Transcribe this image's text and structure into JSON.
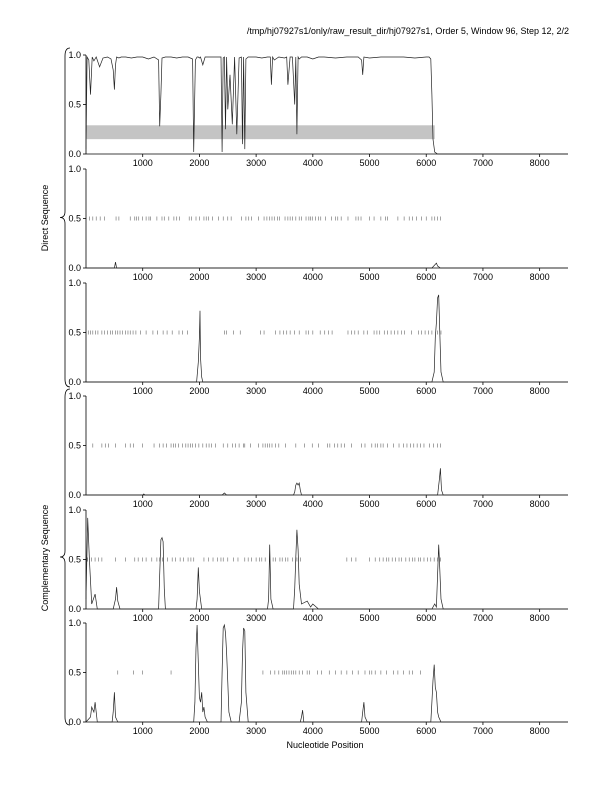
{
  "header": {
    "title": "/tmp/hj07927s1/only/raw_result_dir/hj07927s1, Order 5, Window 96, Step 12, 2/2"
  },
  "groups": [
    {
      "label": "Direct Sequence"
    },
    {
      "label": "Complementary Sequence"
    }
  ],
  "xlabel": "Nucleotide Position",
  "chart_data": [
    {
      "type": "line",
      "strand": "direct",
      "frame": 1,
      "xlim": [
        0,
        8500
      ],
      "ylim": [
        0,
        1
      ],
      "xticks": [
        1000,
        2000,
        3000,
        4000,
        5000,
        6000,
        7000,
        8000
      ],
      "yticks": [
        "0.0",
        "0.5",
        "1.0"
      ],
      "coding_region": [
        0,
        6150
      ],
      "marks_x": [],
      "series": [
        {
          "x": [
            0,
            20,
            50,
            80,
            110,
            140,
            180,
            240,
            300,
            380,
            440,
            480,
            500,
            520,
            540,
            580,
            620,
            700,
            800,
            900,
            1000,
            1100,
            1200,
            1280,
            1300,
            1320,
            1340,
            1400,
            1500,
            1600,
            1700,
            1800,
            1880,
            1900,
            1930,
            1960,
            1980,
            2000,
            2020,
            2060,
            2100,
            2200,
            2300,
            2380,
            2400,
            2420,
            2440,
            2460,
            2480,
            2500,
            2540,
            2580,
            2620,
            2660,
            2700,
            2740,
            2760,
            2780,
            2800,
            2820,
            2860,
            2900,
            3000,
            3100,
            3200,
            3250,
            3270,
            3290,
            3320,
            3400,
            3500,
            3540,
            3560,
            3600,
            3640,
            3680,
            3700,
            3720,
            3740,
            3760,
            3800,
            3900,
            4000,
            4100,
            4200,
            4400,
            4600,
            4800,
            4860,
            4880,
            4900,
            5000,
            5200,
            5400,
            5600,
            5800,
            6000,
            6050,
            6080,
            6100,
            6120,
            6150,
            6200,
            6400,
            8500
          ],
          "y": [
            0.05,
            0.98,
            0.95,
            0.6,
            0.98,
            0.94,
            0.98,
            0.88,
            0.97,
            0.98,
            0.96,
            0.85,
            0.65,
            0.9,
            0.98,
            0.97,
            0.98,
            0.98,
            0.97,
            0.98,
            0.98,
            0.96,
            0.98,
            0.95,
            0.28,
            0.6,
            0.97,
            0.98,
            0.98,
            0.97,
            0.98,
            0.98,
            0.96,
            0.02,
            0.95,
            0.98,
            0.98,
            0.97,
            0.98,
            0.9,
            0.98,
            0.98,
            0.98,
            0.98,
            0.02,
            0.97,
            0.98,
            0.25,
            0.98,
            0.45,
            0.8,
            0.3,
            0.98,
            0.2,
            0.97,
            0.98,
            0.1,
            0.98,
            0.05,
            0.96,
            0.98,
            0.98,
            0.98,
            0.97,
            0.98,
            0.98,
            0.7,
            0.98,
            0.95,
            0.98,
            0.97,
            0.98,
            0.7,
            0.98,
            0.98,
            0.5,
            0.98,
            0.2,
            0.98,
            0.96,
            0.98,
            0.98,
            0.96,
            0.98,
            0.98,
            0.97,
            0.98,
            0.98,
            0.95,
            0.8,
            0.98,
            0.97,
            0.98,
            0.98,
            0.98,
            0.97,
            0.98,
            0.98,
            0.96,
            0.6,
            0.15,
            0.02,
            0.0,
            0.0,
            0.0
          ]
        }
      ]
    },
    {
      "type": "line",
      "strand": "direct",
      "frame": 2,
      "xlim": [
        0,
        8500
      ],
      "ylim": [
        0,
        1
      ],
      "xticks": [
        1000,
        2000,
        3000,
        4000,
        5000,
        6000,
        7000,
        8000
      ],
      "yticks": [
        "0.0",
        "0.5",
        "1.0"
      ],
      "marks_x": [
        60,
        120,
        180,
        250,
        330,
        530,
        580,
        780,
        860,
        890,
        930,
        1000,
        1060,
        1110,
        1140,
        1250,
        1340,
        1380,
        1460,
        1550,
        1600,
        1650,
        1820,
        1860,
        1940,
        2000,
        2080,
        2120,
        2160,
        2230,
        2340,
        2420,
        2500,
        2560,
        2740,
        2820,
        2870,
        2920,
        3040,
        3140,
        3190,
        3240,
        3280,
        3320,
        3380,
        3410,
        3510,
        3560,
        3600,
        3640,
        3700,
        3760,
        3800,
        3880,
        3930,
        3960,
        3990,
        4050,
        4100,
        4140,
        4220,
        4330,
        4400,
        4440,
        4500,
        4620,
        4760,
        4800,
        4850,
        5000,
        5080,
        5200,
        5280,
        5320,
        5500,
        5610,
        5700,
        5760,
        5830,
        5920,
        6000,
        6100,
        6150,
        6200,
        6250
      ],
      "series": [
        {
          "x": [
            0,
            500,
            520,
            540,
            560,
            6100,
            6150,
            6180,
            6200,
            6250,
            8500
          ],
          "y": [
            0,
            0,
            0.06,
            0.0,
            0,
            0,
            0.03,
            0.05,
            0.02,
            0,
            0
          ]
        }
      ]
    },
    {
      "type": "line",
      "strand": "direct",
      "frame": 3,
      "xlim": [
        0,
        8500
      ],
      "ylim": [
        0,
        1
      ],
      "xticks": [
        1000,
        2000,
        3000,
        4000,
        5000,
        6000,
        7000,
        8000
      ],
      "yticks": [
        "0.0",
        "0.5",
        "1.0"
      ],
      "marks_x": [
        40,
        80,
        120,
        170,
        210,
        280,
        330,
        380,
        430,
        470,
        520,
        560,
        600,
        640,
        700,
        740,
        780,
        830,
        880,
        960,
        1060,
        1180,
        1260,
        1360,
        1430,
        1520,
        1640,
        1700,
        1790,
        2440,
        2480,
        2600,
        2720,
        3080,
        3140,
        3340,
        3420,
        3480,
        3540,
        3600,
        3680,
        3760,
        3880,
        3920,
        4000,
        4130,
        4210,
        4280,
        4340,
        4620,
        4680,
        4740,
        4800,
        4900,
        4960,
        5080,
        5130,
        5180,
        5260,
        5320,
        5380,
        5440,
        5500,
        5560,
        5620,
        5740,
        5860,
        5920,
        5980,
        6040,
        6100,
        6200,
        6260
      ],
      "series": [
        {
          "x": [
            0,
            1900,
            1950,
            1980,
            2000,
            2010,
            2020,
            2040,
            2060,
            2100,
            6100,
            6140,
            6160,
            6180,
            6200,
            6220,
            6240,
            6260,
            6300,
            8500
          ],
          "y": [
            0,
            0,
            0,
            0.2,
            0.45,
            0.72,
            0.25,
            0.05,
            0,
            0,
            0,
            0.1,
            0.45,
            0.6,
            0.85,
            0.88,
            0.5,
            0.1,
            0,
            0
          ]
        }
      ]
    },
    {
      "type": "line",
      "strand": "complementary",
      "frame": 1,
      "xlim": [
        0,
        8500
      ],
      "ylim": [
        0,
        1
      ],
      "xticks": [
        1000,
        2000,
        3000,
        4000,
        5000,
        6000,
        7000,
        8000
      ],
      "yticks": [
        "0.0",
        "0.5",
        "1.0"
      ],
      "marks_x": [
        120,
        280,
        340,
        400,
        520,
        700,
        780,
        840,
        1000,
        1200,
        1300,
        1360,
        1420,
        1500,
        1540,
        1580,
        1630,
        1700,
        1760,
        1800,
        1840,
        1880,
        1930,
        1990,
        2060,
        2120,
        2170,
        2210,
        2280,
        2420,
        2500,
        2580,
        2640,
        2700,
        2780,
        2800,
        2900,
        3040,
        3120,
        3160,
        3200,
        3240,
        3280,
        3340,
        3400,
        3520,
        3700,
        3850,
        3990,
        4100,
        4260,
        4300,
        4380,
        4440,
        4500,
        4560,
        4680,
        4860,
        4920,
        5040,
        5100,
        5140,
        5200,
        5240,
        5320,
        5420,
        5520,
        5600,
        5660,
        5720,
        5780,
        5840,
        5900,
        5960,
        6060,
        6130,
        6200,
        6250
      ],
      "series": [
        {
          "x": [
            0,
            1000,
            1020,
            1040,
            2400,
            2440,
            2480,
            3660,
            3680,
            3700,
            3720,
            3740,
            3760,
            3780,
            3800,
            6200,
            6230,
            6250,
            6270,
            6300,
            8500
          ],
          "y": [
            0,
            0,
            0.01,
            0,
            0,
            0.02,
            0,
            0,
            0.03,
            0.1,
            0.12,
            0.1,
            0.12,
            0.05,
            0,
            0,
            0.15,
            0.27,
            0.05,
            0,
            0
          ]
        }
      ]
    },
    {
      "type": "line",
      "strand": "complementary",
      "frame": 2,
      "xlim": [
        0,
        8500
      ],
      "ylim": [
        0,
        1
      ],
      "xticks": [
        1000,
        2000,
        3000,
        4000,
        5000,
        6000,
        7000,
        8000
      ],
      "yticks": [
        "0.0",
        "0.5",
        "1.0"
      ],
      "marks_x": [
        30,
        100,
        160,
        220,
        280,
        520,
        700,
        860,
        920,
        1000,
        1060,
        1160,
        1250,
        1300,
        1350,
        1440,
        1520,
        1580,
        1660,
        1720,
        1800,
        1850,
        1900,
        2080,
        2160,
        2240,
        2320,
        2380,
        2420,
        2500,
        2600,
        2680,
        2800,
        2860,
        2920,
        3000,
        3060,
        3100,
        3160,
        3240,
        3300,
        3340,
        3420,
        3460,
        3520,
        3560,
        3640,
        3720,
        3780,
        4600,
        4680,
        4760,
        5000,
        5100,
        5180,
        5240,
        5300,
        5340,
        5400,
        5460,
        5520,
        5560,
        5640,
        5700,
        5760,
        5800,
        5860,
        5900,
        5960,
        6020,
        6080,
        6140,
        6200,
        6250
      ],
      "series": [
        {
          "x": [
            0,
            30,
            60,
            100,
            160,
            200,
            480,
            520,
            540,
            560,
            600,
            1280,
            1300,
            1320,
            1340,
            1360,
            1380,
            1400,
            1940,
            1960,
            1980,
            2000,
            2040,
            3200,
            3220,
            3240,
            3260,
            3300,
            3660,
            3680,
            3700,
            3720,
            3740,
            3760,
            3800,
            3900,
            3960,
            4000,
            4100,
            6100,
            6150,
            6180,
            6200,
            6220,
            6240,
            6260,
            6300,
            8500
          ],
          "y": [
            0.1,
            0.92,
            0.5,
            0.05,
            0.15,
            0,
            0,
            0.1,
            0.22,
            0.08,
            0,
            0,
            0.35,
            0.7,
            0.72,
            0.68,
            0.2,
            0,
            0,
            0.1,
            0.42,
            0.18,
            0,
            0,
            0.1,
            0.65,
            0.1,
            0,
            0,
            0.2,
            0.52,
            0.8,
            0.6,
            0.25,
            0.05,
            0.08,
            0.02,
            0.05,
            0,
            0,
            0.05,
            0.02,
            0.35,
            0.65,
            0.4,
            0.1,
            0,
            0
          ]
        }
      ]
    },
    {
      "type": "line",
      "strand": "complementary",
      "frame": 3,
      "xlim": [
        0,
        8500
      ],
      "ylim": [
        0,
        1
      ],
      "xticks": [
        1000,
        2000,
        3000,
        4000,
        5000,
        6000,
        7000,
        8000
      ],
      "yticks": [
        "0.0",
        "0.5",
        "1.0"
      ],
      "marks_x": [
        560,
        840,
        1000,
        1500,
        3120,
        3250,
        3330,
        3400,
        3470,
        3500,
        3540,
        3580,
        3620,
        3660,
        3700,
        3760,
        3820,
        3900,
        3940,
        4080,
        4150,
        4290,
        4400,
        4500,
        4600,
        4700,
        4800,
        4920,
        5000,
        5040,
        5100,
        5200,
        5300,
        5420,
        5500,
        5600,
        5700,
        5760,
        5900
      ],
      "series": [
        {
          "x": [
            0,
            80,
            100,
            140,
            160,
            200,
            460,
            480,
            500,
            520,
            560,
            1900,
            1920,
            1940,
            1960,
            1980,
            2000,
            2020,
            2040,
            2060,
            2080,
            2100,
            2140,
            2380,
            2400,
            2420,
            2440,
            2460,
            2480,
            2500,
            2520,
            2560,
            2700,
            2740,
            2760,
            2780,
            2800,
            2820,
            2860,
            3780,
            3800,
            3820,
            3840,
            4860,
            4880,
            4900,
            4920,
            4960,
            6080,
            6100,
            6120,
            6140,
            6160,
            6180,
            6200,
            6220,
            6260,
            8500
          ],
          "y": [
            0,
            0.05,
            0.15,
            0.1,
            0.2,
            0,
            0,
            0.1,
            0.3,
            0.05,
            0,
            0,
            0.2,
            0.75,
            0.98,
            0.6,
            0.25,
            0.2,
            0.3,
            0.1,
            0.15,
            0.05,
            0,
            0,
            0.5,
            0.95,
            0.98,
            0.9,
            0.7,
            0.4,
            0.1,
            0,
            0,
            0.2,
            0.7,
            0.95,
            0.92,
            0.3,
            0,
            0,
            0.05,
            0.12,
            0,
            0,
            0.1,
            0.2,
            0.05,
            0,
            0,
            0.2,
            0.42,
            0.58,
            0.35,
            0.3,
            0.1,
            0.05,
            0,
            0
          ]
        }
      ]
    }
  ]
}
